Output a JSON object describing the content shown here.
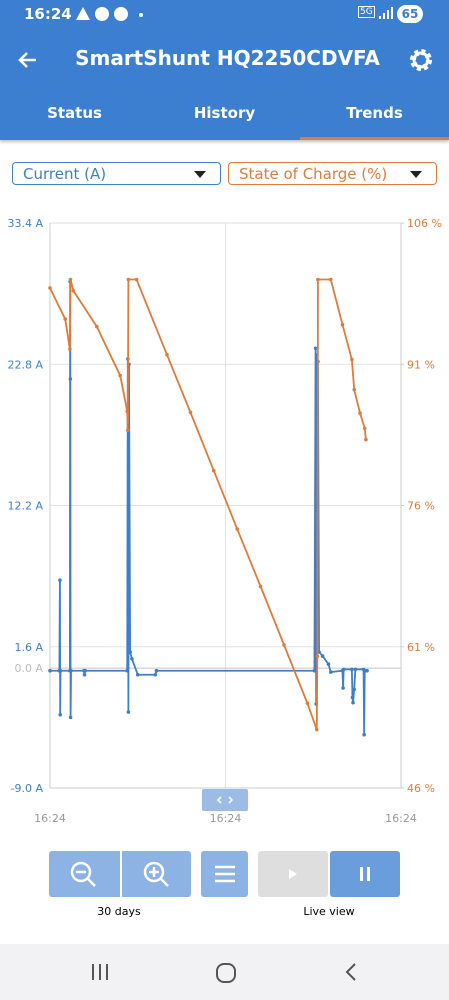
{
  "status_bar": {
    "time": "16:24",
    "network": "5G",
    "battery": "65"
  },
  "header": {
    "title": "SmartShunt HQ2250CDVFA"
  },
  "tabs": [
    "Status",
    "History",
    "Trends"
  ],
  "chart_data": {
    "type": "line",
    "xlim": [
      0,
      30
    ],
    "xticks": [
      {
        "value": 0,
        "label": "16:24"
      },
      {
        "value": 15,
        "label": "16:24"
      },
      {
        "value": 30,
        "label": "16:24"
      }
    ],
    "ylim": [
      -9.0,
      33.4
    ],
    "yticks": [
      {
        "value": -9.0,
        "label": "-9.0 A"
      },
      {
        "value": 1.6,
        "label": "1.6 A"
      },
      {
        "value": 12.2,
        "label": "12.2 A"
      },
      {
        "value": 22.8,
        "label": "22.8 A"
      },
      {
        "value": 33.4,
        "label": "33.4 A"
      }
    ],
    "zero_line": {
      "value": 0,
      "label": "0.0 A"
    },
    "y2lim": [
      46,
      106
    ],
    "y2ticks": [
      {
        "value": 46,
        "label": "46 %"
      },
      {
        "value": 61,
        "label": "61 %"
      },
      {
        "value": 76,
        "label": "76 %"
      },
      {
        "value": 91,
        "label": "91 %"
      },
      {
        "value": 106,
        "label": "106 %"
      }
    ],
    "grid": true,
    "series": [
      {
        "name": "Current (A)",
        "color": "#3f7fc9",
        "x": [
          0,
          0.8,
          0.85,
          0.87,
          0.9,
          1.7,
          1.72,
          1.74,
          1.76,
          1.8,
          2.9,
          2.95,
          3.0,
          6.6,
          6.65,
          6.7,
          6.75,
          6.85,
          7.0,
          7.5,
          9.0,
          9.1,
          22.6,
          22.7,
          22.75,
          22.8,
          22.9,
          23.0,
          23.3,
          23.8,
          24.0,
          25.0,
          25.05,
          25.1,
          25.8,
          25.85,
          25.9,
          26.0,
          26.1,
          26.8,
          26.85,
          26.9,
          27.1
        ],
        "values": [
          -0.2,
          -0.2,
          6.6,
          -3.5,
          -0.2,
          -0.2,
          29.0,
          21.7,
          -3.7,
          -0.2,
          -0.2,
          -0.5,
          -0.2,
          -0.2,
          23.2,
          -3.3,
          22.8,
          1.2,
          0.7,
          -0.5,
          -0.5,
          -0.2,
          -0.2,
          24.0,
          -2.7,
          23.5,
          23.0,
          1.2,
          0.9,
          0.3,
          -0.3,
          -0.2,
          -1.5,
          -0.1,
          -0.1,
          -2.2,
          -2.6,
          -1.6,
          -0.1,
          -0.1,
          -5.0,
          -0.2,
          -0.2
        ]
      },
      {
        "name": "State of Charge (%)",
        "color": "#e07b39",
        "axis": "y2",
        "x": [
          0,
          1.3,
          1.7,
          1.75,
          2.0,
          4.0,
          6.0,
          6.6,
          6.65,
          6.7,
          7.4,
          10,
          12,
          14,
          16,
          18,
          20,
          22,
          22.8,
          22.85,
          22.9,
          24.0,
          25.0,
          25.8,
          26.0,
          26.5,
          26.9,
          27.0
        ],
        "values": [
          99.1,
          95.8,
          92.6,
          100,
          98.8,
          95,
          89.8,
          86,
          84,
          100,
          100,
          92,
          85.9,
          79.7,
          73.5,
          67.4,
          61.2,
          55,
          52.2,
          60,
          100,
          100,
          95.2,
          91.5,
          88.3,
          85.8,
          84.2,
          83.0
        ]
      }
    ]
  },
  "controls": {
    "zoom_label": "30 days",
    "live_label": "Live view"
  }
}
